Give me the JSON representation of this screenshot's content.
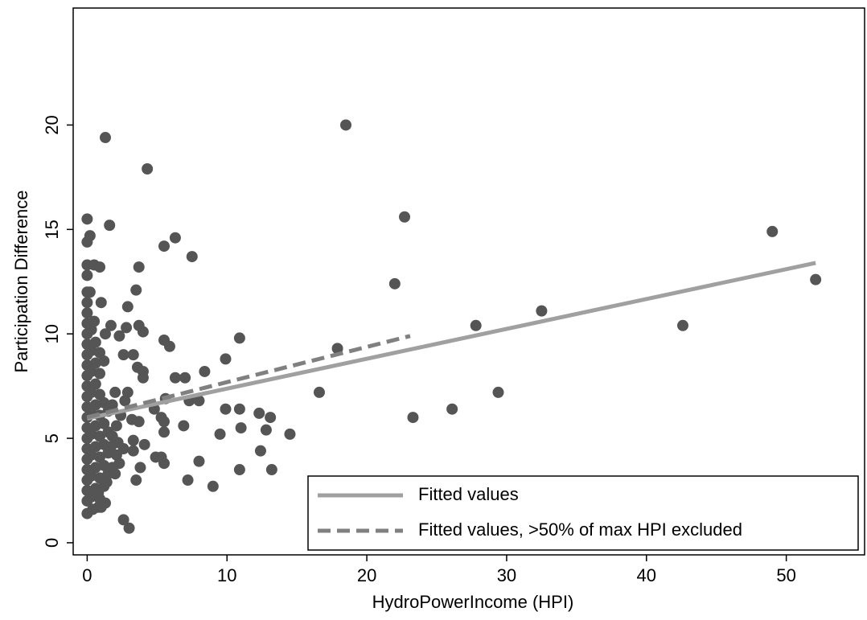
{
  "chart_data": {
    "type": "scatter",
    "x_label": "HydroPowerIncome (HPI)",
    "y_label": "Participation Difference",
    "xlim": [
      -1,
      55.6
    ],
    "ylim": [
      -0.58,
      25.6
    ],
    "xticks": [
      0,
      10,
      20,
      30,
      40,
      50
    ],
    "yticks": [
      0,
      5,
      10,
      15,
      20
    ],
    "legend": "bottom-right",
    "series": [
      {
        "type": "scatter",
        "color": "#555555",
        "x": [
          1.3,
          18.5,
          4.3,
          0,
          1.6,
          22.7,
          0.2,
          0,
          5.5,
          6.3,
          7.5,
          0,
          0.5,
          0.9,
          3.7,
          49,
          52.1,
          22,
          0,
          0,
          0.2,
          3.5,
          0,
          1,
          2.9,
          32.5,
          42.6,
          27.8,
          0.5,
          1.7,
          3.7,
          4,
          2.8,
          1.3,
          2.3,
          10.9,
          5.5,
          5.9,
          17.9,
          2.6,
          3.3,
          9.9,
          3.6,
          4,
          8.4,
          6.3,
          7,
          4,
          16.6,
          29.4,
          2.9,
          2,
          7.3,
          5.6,
          8,
          4.8,
          9.9,
          10.9,
          12.3,
          13.1,
          23.3,
          26.1,
          5.3,
          3.2,
          3.7,
          5.5,
          6.9,
          11,
          12.8,
          5.5,
          9.5,
          14.5,
          3.3,
          4.1,
          2.2,
          12.4,
          2.6,
          3.3,
          1.7,
          4.9,
          5.3,
          8,
          2.3,
          5.5,
          3.8,
          10.9,
          13.2,
          2,
          3.5,
          7.2,
          1.4,
          9,
          0.8,
          1.3,
          0.8,
          0,
          2.6,
          3,
          0,
          0,
          0,
          0,
          0,
          0,
          0,
          0,
          0,
          0,
          0,
          0,
          0,
          0,
          0,
          0,
          0,
          0,
          0,
          0.3,
          0.3,
          0.3,
          0.3,
          0.3,
          0.3,
          0.3,
          0.3,
          0.3,
          0.6,
          0.6,
          0.6,
          0.6,
          0.6,
          0.6,
          0.6,
          0.6,
          0.9,
          0.9,
          0.9,
          0.9,
          0.9,
          0.9,
          0.9,
          0.9,
          1.2,
          1.2,
          1.2,
          1.2,
          1.2,
          1.2,
          1.5,
          1.5,
          1.5,
          1.5,
          1.8,
          1.8,
          1.8,
          2.1,
          2.1,
          2.4,
          2.7,
          1.0,
          0.4
        ],
        "values": [
          19.4,
          20,
          17.9,
          15.5,
          15.2,
          15.6,
          14.7,
          14.4,
          14.2,
          14.6,
          13.7,
          13.3,
          13.3,
          13.2,
          13.2,
          14.9,
          12.6,
          12.4,
          12.8,
          12,
          12,
          12.1,
          11.5,
          11.5,
          11.3,
          11.1,
          10.4,
          10.4,
          10.6,
          10.4,
          10.4,
          10.1,
          10.3,
          10,
          9.9,
          9.8,
          9.7,
          9.4,
          9.3,
          9,
          9,
          8.8,
          8.4,
          8.2,
          8.2,
          7.9,
          7.9,
          7.9,
          7.2,
          7.2,
          7.2,
          7.2,
          6.8,
          6.9,
          6.8,
          6.4,
          6.4,
          6.4,
          6.2,
          6,
          6,
          6.4,
          6,
          5.9,
          5.8,
          5.8,
          5.6,
          5.5,
          5.4,
          5.3,
          5.2,
          5.2,
          4.9,
          4.7,
          4.8,
          4.4,
          4.5,
          4.4,
          4.6,
          4.1,
          4.1,
          3.9,
          3.8,
          3.8,
          3.6,
          3.5,
          3.5,
          3.3,
          3,
          3,
          2.9,
          2.7,
          2.4,
          1.9,
          1.7,
          1.4,
          1.1,
          0.7,
          2,
          2.5,
          3,
          3.5,
          4,
          4.5,
          5,
          5.5,
          6,
          6.5,
          7,
          7.5,
          8,
          8.5,
          9,
          9.5,
          10,
          10.5,
          11,
          2.2,
          3.2,
          4.2,
          5.2,
          6.2,
          7.2,
          8.2,
          9.2,
          10.2,
          2.6,
          3.6,
          4.6,
          5.6,
          6.6,
          7.6,
          8.6,
          9.6,
          2.1,
          3.1,
          4.1,
          5.1,
          6.1,
          7.1,
          8.1,
          9.1,
          2.7,
          3.7,
          4.7,
          5.7,
          6.7,
          8.7,
          3.3,
          4.3,
          5.3,
          6.3,
          3.6,
          5.1,
          6.6,
          4.2,
          5.6,
          6.1,
          6.8,
          1.7,
          1.6
        ]
      },
      {
        "type": "line",
        "name": "Fitted values",
        "color": "#a0a0a0",
        "x": [
          0,
          52.1
        ],
        "values": [
          5.95,
          13.4
        ]
      },
      {
        "type": "line",
        "name": "Fitted values, >50% of max HPI excluded",
        "color": "#808080",
        "dash": true,
        "x": [
          0,
          23.1
        ],
        "values": [
          6.0,
          9.9
        ]
      }
    ]
  }
}
